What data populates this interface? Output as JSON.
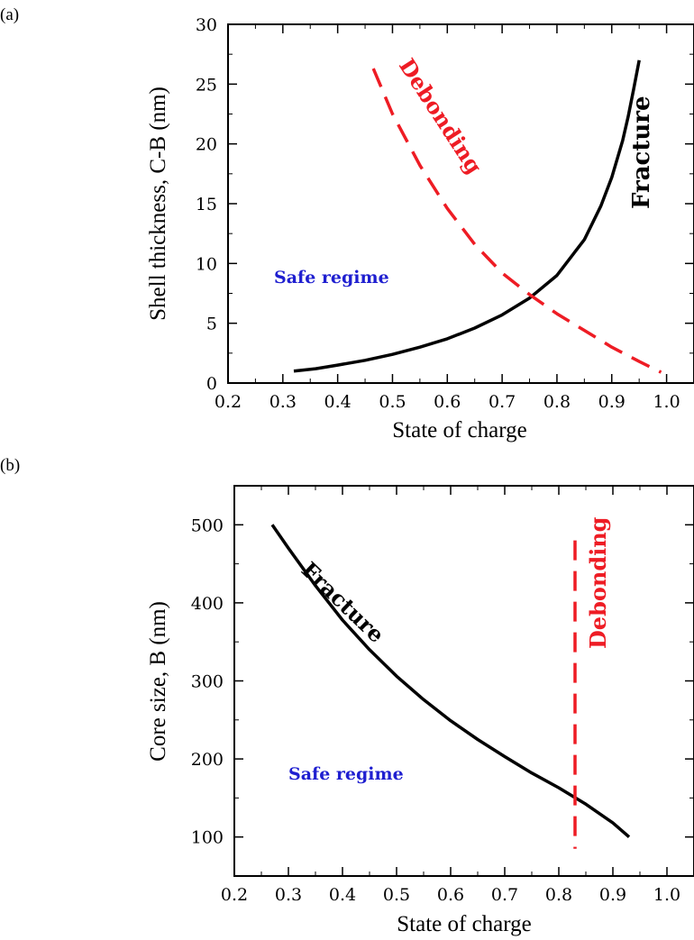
{
  "chart_data": [
    {
      "panel_label": "(a)",
      "type": "line",
      "xlabel": "State of charge",
      "ylabel": "Shell thickness,  C-B (nm)",
      "xlim": [
        0.2,
        1.05
      ],
      "ylim": [
        0,
        30
      ],
      "xticks": [
        0.2,
        0.3,
        0.4,
        0.5,
        0.6,
        0.7,
        0.8,
        0.9,
        1.0
      ],
      "xtick_labels": [
        "0.2",
        "0.3",
        "0.4",
        "0.5",
        "0.6",
        "0.7",
        "0.8",
        "0.9",
        "1.0"
      ],
      "yticks": [
        0,
        5,
        10,
        15,
        20,
        25,
        30
      ],
      "ytick_labels": [
        "0",
        "5",
        "10",
        "15",
        "20",
        "25",
        "30"
      ],
      "grid": false,
      "series": [
        {
          "name": "Fracture",
          "color": "#000000",
          "style": "solid",
          "x": [
            0.32,
            0.36,
            0.4,
            0.45,
            0.5,
            0.55,
            0.6,
            0.65,
            0.7,
            0.75,
            0.8,
            0.85,
            0.88,
            0.9,
            0.92,
            0.93,
            0.94,
            0.95
          ],
          "y": [
            1.0,
            1.2,
            1.5,
            1.9,
            2.4,
            3.0,
            3.7,
            4.6,
            5.7,
            7.1,
            9.0,
            12.0,
            14.8,
            17.2,
            20.3,
            22.3,
            24.6,
            27.0
          ]
        },
        {
          "name": "Debonding",
          "color": "#ee1c24",
          "style": "dashed",
          "x": [
            0.465,
            0.5,
            0.55,
            0.6,
            0.65,
            0.7,
            0.75,
            0.8,
            0.85,
            0.9,
            0.95,
            0.99
          ],
          "y": [
            26.3,
            22.5,
            18.2,
            14.6,
            11.6,
            9.2,
            7.4,
            5.8,
            4.4,
            3.0,
            1.8,
            0.9
          ]
        }
      ],
      "annotations": [
        {
          "text": "Debonding",
          "color": "#ee1c24"
        },
        {
          "text": "Fracture",
          "color": "#000000"
        },
        {
          "text": "Safe regime",
          "color": "#1f1fd0"
        }
      ]
    },
    {
      "panel_label": "(b)",
      "type": "line",
      "xlabel": "State of charge",
      "ylabel": "Core size,   B (nm)",
      "xlim": [
        0.2,
        1.05
      ],
      "ylim": [
        50,
        550
      ],
      "xticks": [
        0.2,
        0.3,
        0.4,
        0.5,
        0.6,
        0.7,
        0.8,
        0.9,
        1.0
      ],
      "xtick_labels": [
        "0.2",
        "0.3",
        "0.4",
        "0.5",
        "0.6",
        "0.7",
        "0.8",
        "0.9",
        "1.0"
      ],
      "yticks": [
        100,
        200,
        300,
        400,
        500
      ],
      "ytick_labels": [
        "100",
        "200",
        "300",
        "400",
        "500"
      ],
      "grid": false,
      "series": [
        {
          "name": "Fracture",
          "color": "#000000",
          "style": "solid",
          "x": [
            0.27,
            0.3,
            0.35,
            0.4,
            0.45,
            0.5,
            0.55,
            0.6,
            0.65,
            0.7,
            0.75,
            0.8,
            0.85,
            0.9,
            0.93
          ],
          "y": [
            500,
            470,
            422,
            378,
            340,
            306,
            276,
            249,
            225,
            203,
            182,
            163,
            142,
            118,
            100
          ]
        },
        {
          "name": "Debonding",
          "color": "#ee1c24",
          "style": "dashed",
          "x": [
            0.83,
            0.83
          ],
          "y": [
            480,
            85
          ]
        }
      ],
      "annotations": [
        {
          "text": "Fracture",
          "color": "#000000"
        },
        {
          "text": "Debonding",
          "color": "#ee1c24"
        },
        {
          "text": "Safe regime",
          "color": "#1f1fd0"
        }
      ]
    }
  ]
}
